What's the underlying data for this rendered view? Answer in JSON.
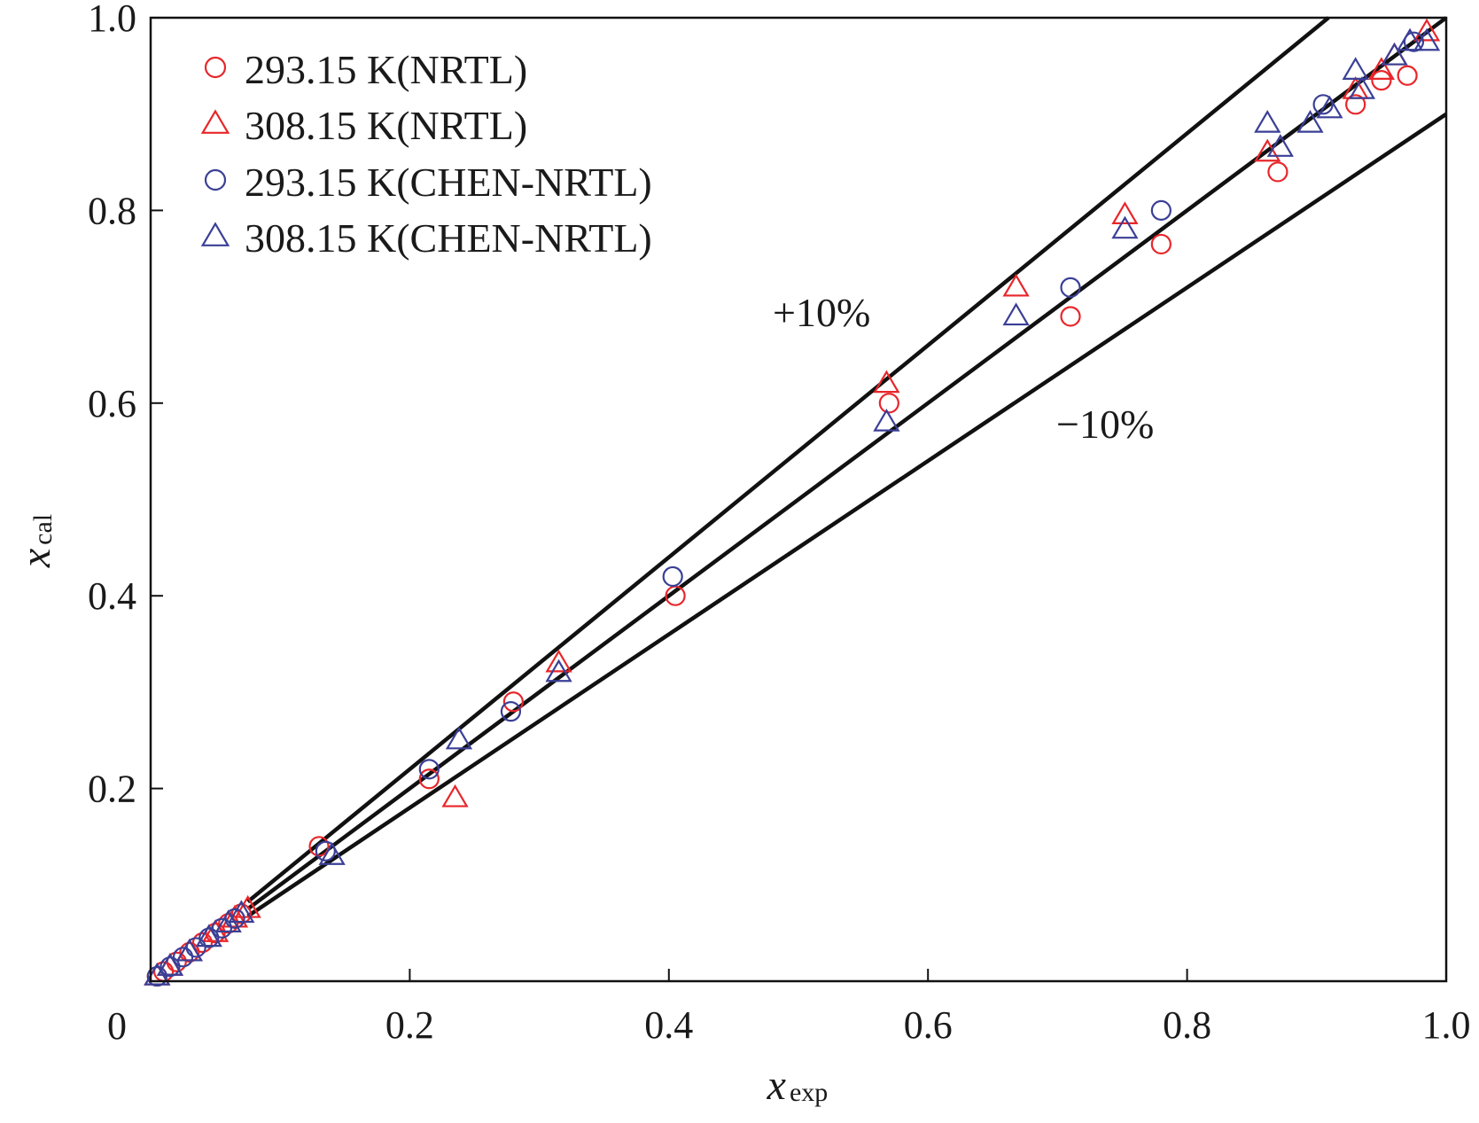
{
  "chart_data": {
    "type": "scatter",
    "title": "",
    "xlabel": "x",
    "xlabel_sub": "exp",
    "ylabel": "x",
    "ylabel_sub": "cal",
    "xlim": [
      0,
      1.0
    ],
    "ylim": [
      0,
      1.0
    ],
    "x_ticks": [
      0.2,
      0.4,
      0.6,
      0.8,
      1.0
    ],
    "x_tick_labels": [
      "0.2",
      "0.4",
      "0.6",
      "0.8",
      "1.0"
    ],
    "y_ticks": [
      0.2,
      0.4,
      0.6,
      0.8,
      1.0
    ],
    "y_tick_labels": [
      "0.2",
      "0.4",
      "0.6",
      "0.8",
      "1.0"
    ],
    "origin_label": "0",
    "grid": false,
    "legend_position": "top-left",
    "colors": {
      "red": "#e8262a",
      "blue": "#3a3f96",
      "line": "#111111"
    },
    "reference_lines": [
      {
        "name": "plus-10",
        "label": "+10%",
        "slope": 1.1,
        "x_start": 0.075
      },
      {
        "name": "parity",
        "label": "",
        "slope": 1.0,
        "x_start": 0.075
      },
      {
        "name": "minus-10",
        "label": "−10%",
        "slope": 0.9,
        "x_start": 0.075
      }
    ],
    "series": [
      {
        "name": "293.15 K(NRTL)",
        "marker": "circle",
        "color": "#e8262a",
        "x": [
          0.005,
          0.01,
          0.02,
          0.03,
          0.04,
          0.05,
          0.06,
          0.07,
          0.13,
          0.215,
          0.28,
          0.405,
          0.57,
          0.71,
          0.78,
          0.87,
          0.93,
          0.95,
          0.97
        ],
        "y": [
          0.005,
          0.01,
          0.02,
          0.03,
          0.04,
          0.05,
          0.06,
          0.07,
          0.14,
          0.21,
          0.29,
          0.4,
          0.6,
          0.69,
          0.765,
          0.84,
          0.91,
          0.935,
          0.94
        ]
      },
      {
        "name": "308.15 K(NRTL)",
        "marker": "triangle",
        "color": "#e8262a",
        "x": [
          0.005,
          0.015,
          0.03,
          0.05,
          0.065,
          0.075,
          0.235,
          0.315,
          0.568,
          0.668,
          0.752,
          0.862,
          0.93,
          0.95,
          0.96,
          0.985
        ],
        "y": [
          0.005,
          0.015,
          0.03,
          0.05,
          0.065,
          0.075,
          0.19,
          0.33,
          0.62,
          0.72,
          0.795,
          0.86,
          0.925,
          0.945,
          0.96,
          0.985
        ]
      },
      {
        "name": "293.15 K(CHEN-NRTL)",
        "marker": "circle",
        "color": "#3a3f96",
        "x": [
          0.005,
          0.015,
          0.025,
          0.035,
          0.045,
          0.055,
          0.065,
          0.135,
          0.215,
          0.278,
          0.403,
          0.71,
          0.78,
          0.905,
          0.975
        ],
        "y": [
          0.005,
          0.015,
          0.025,
          0.035,
          0.045,
          0.055,
          0.065,
          0.135,
          0.22,
          0.28,
          0.42,
          0.72,
          0.8,
          0.91,
          0.975
        ]
      },
      {
        "name": "308.15 K(CHEN-NRTL)",
        "marker": "triangle",
        "color": "#3a3f96",
        "x": [
          0.005,
          0.015,
          0.03,
          0.045,
          0.06,
          0.07,
          0.14,
          0.238,
          0.315,
          0.568,
          0.668,
          0.752,
          0.862,
          0.872,
          0.895,
          0.91,
          0.93,
          0.935,
          0.96,
          0.972,
          0.985
        ],
        "y": [
          0.005,
          0.015,
          0.03,
          0.045,
          0.06,
          0.07,
          0.13,
          0.25,
          0.32,
          0.58,
          0.69,
          0.78,
          0.89,
          0.865,
          0.89,
          0.905,
          0.945,
          0.925,
          0.96,
          0.975,
          0.975
        ]
      }
    ]
  }
}
